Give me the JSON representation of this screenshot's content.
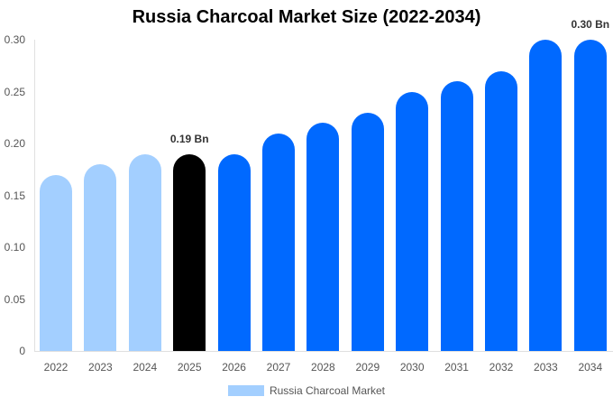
{
  "chart_data": {
    "type": "bar",
    "title": "Russia Charcoal Market Size (2022-2034)",
    "xlabel": "",
    "ylabel": "",
    "ylim": [
      0,
      0.3
    ],
    "yticks": [
      "0",
      "0.05",
      "0.10",
      "0.15",
      "0.20",
      "0.25",
      "0.30"
    ],
    "categories": [
      "2022",
      "2023",
      "2024",
      "2025",
      "2026",
      "2027",
      "2028",
      "2029",
      "2030",
      "2031",
      "2032",
      "2033",
      "2034"
    ],
    "series": [
      {
        "name": "Russia Charcoal Market",
        "values": [
          0.17,
          0.18,
          0.19,
          0.19,
          0.19,
          0.21,
          0.22,
          0.23,
          0.25,
          0.26,
          0.27,
          0.3,
          0.3
        ]
      }
    ],
    "bar_colors": [
      "#a3cfff",
      "#a3cfff",
      "#a3cfff",
      "#000000",
      "#0069ff",
      "#0069ff",
      "#0069ff",
      "#0069ff",
      "#0069ff",
      "#0069ff",
      "#0069ff",
      "#0069ff",
      "#0069ff"
    ],
    "annotations": [
      {
        "category": "2025",
        "text": "0.19 Bn"
      },
      {
        "category": "2034",
        "text": "0.30 Bn"
      }
    ],
    "legend": {
      "position": "bottom",
      "label": "Russia Charcoal Market",
      "color": "#a3cfff"
    },
    "grid": false
  }
}
